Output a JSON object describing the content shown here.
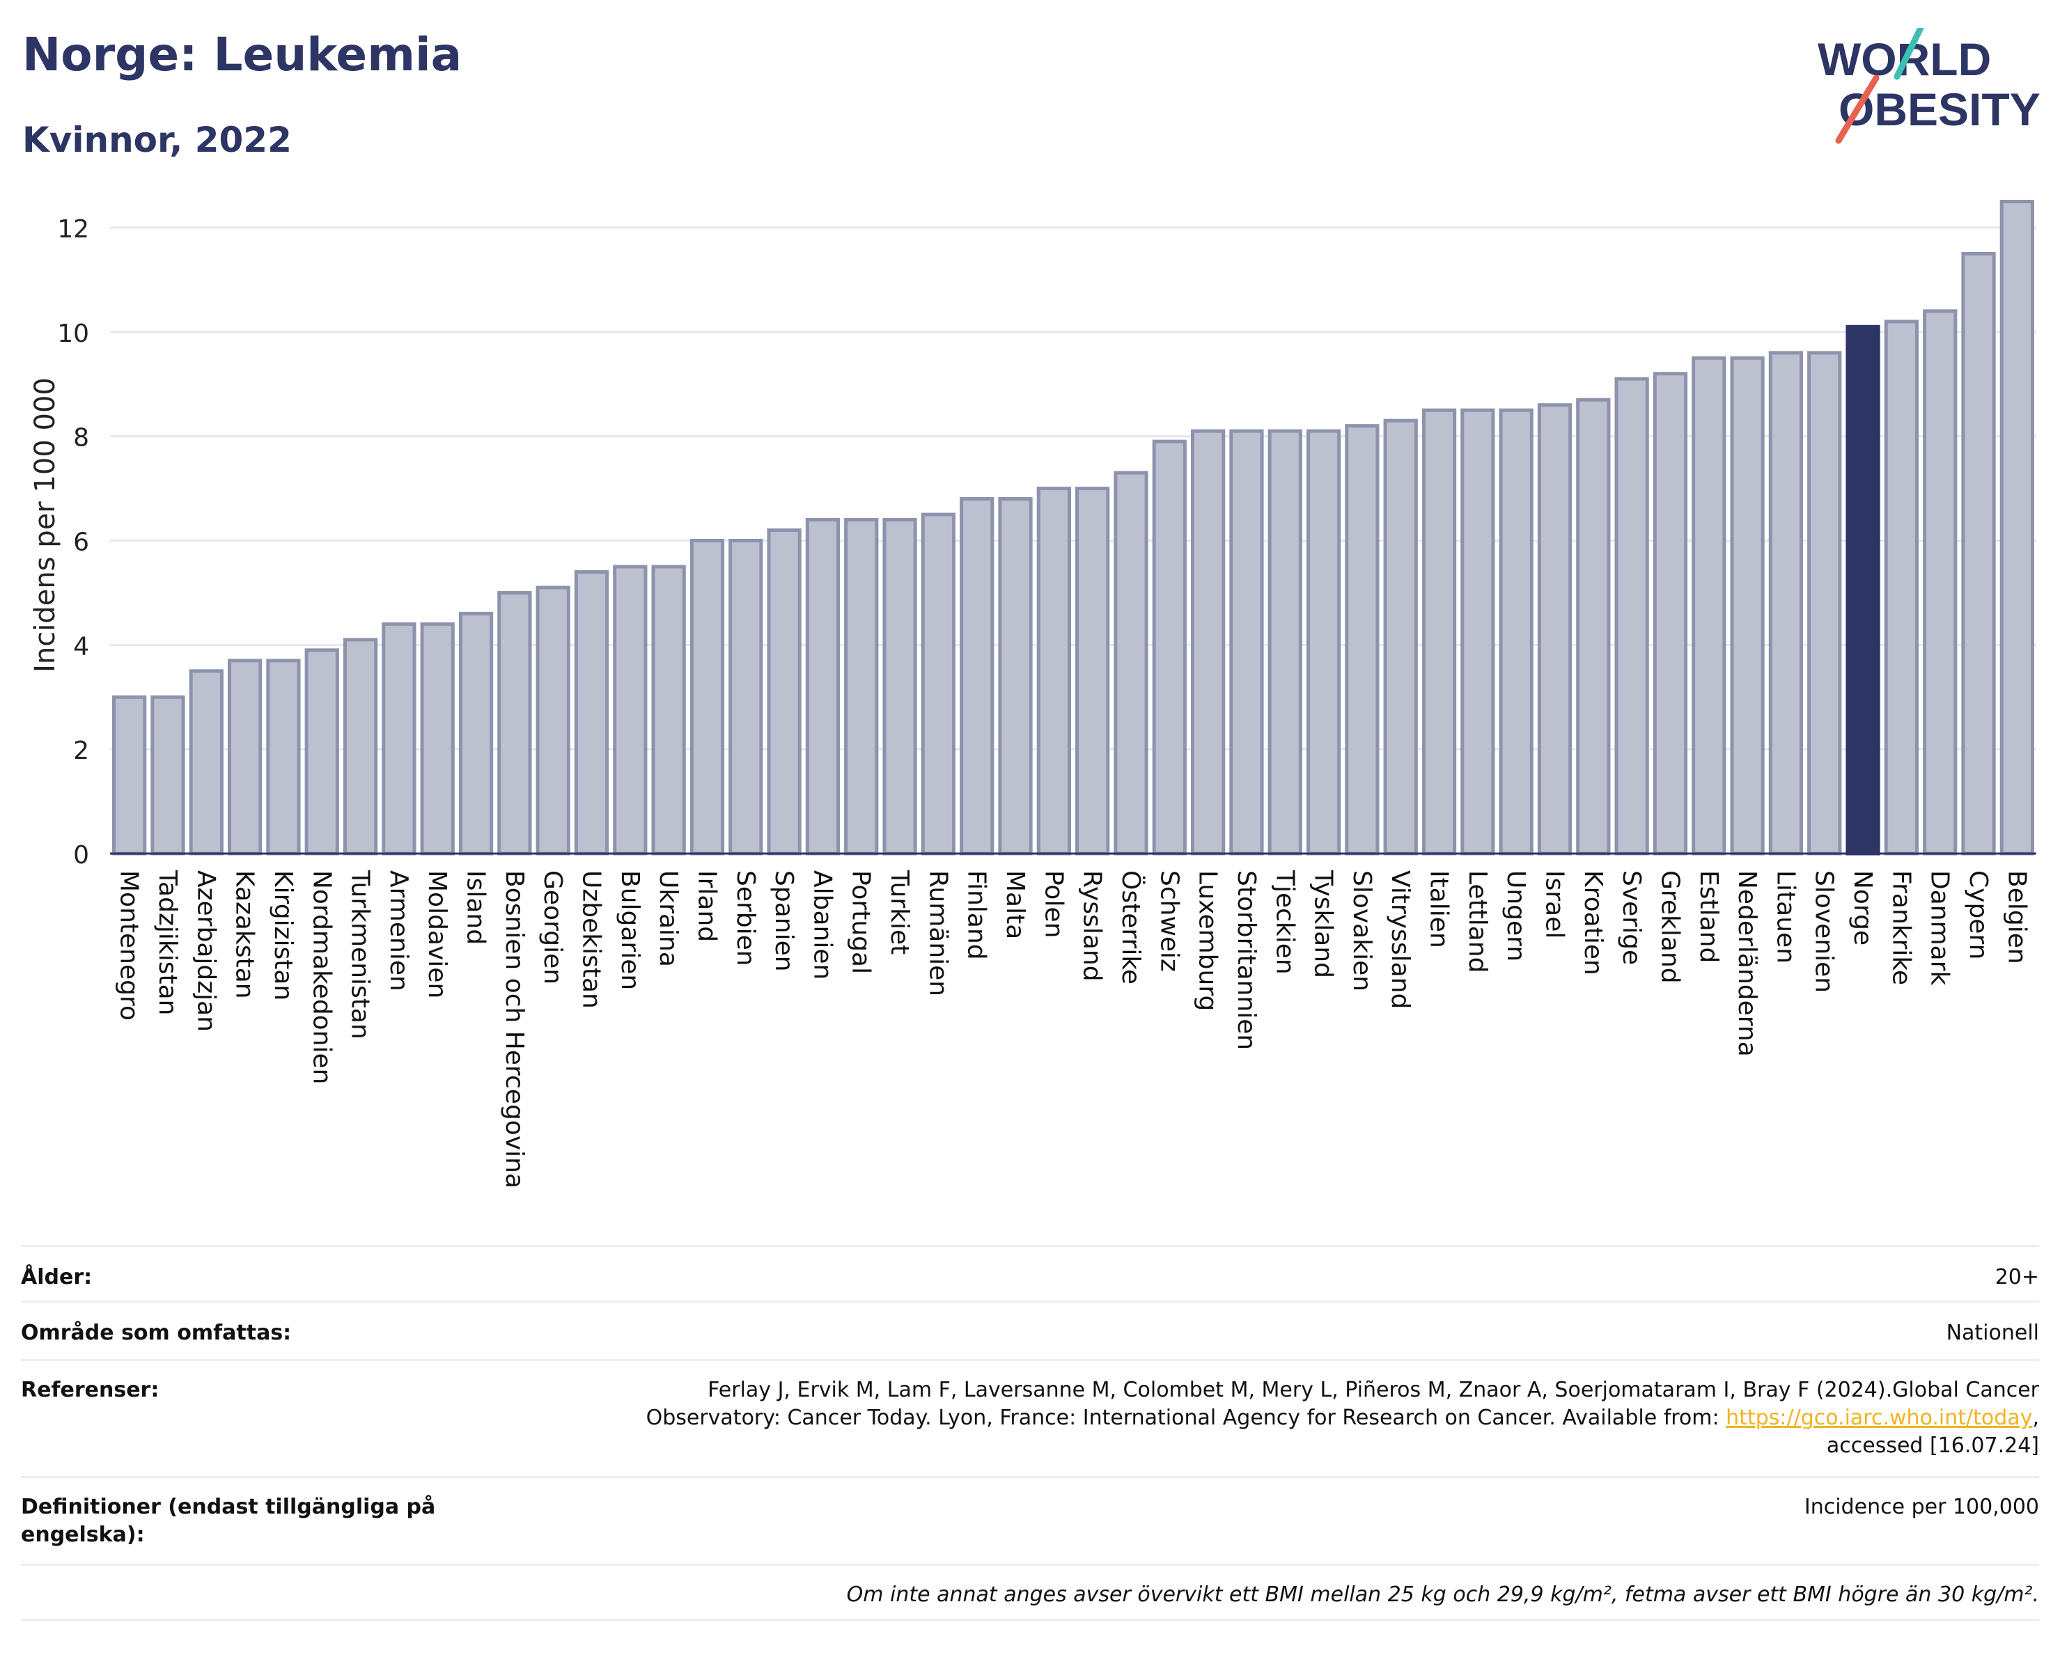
{
  "header": {
    "title": "Norge: Leukemia",
    "subtitle": "Kvinnor, 2022"
  },
  "logo": {
    "line1": "WORLD",
    "line2": "OBESITY",
    "icon": "world-obesity-logo"
  },
  "colors": {
    "bar": "#bcc0cf",
    "bar_stroke": "#8e93ad",
    "highlight": "#2c3564",
    "grid": "#e6e8ee",
    "text": "#2c3564"
  },
  "chart_data": {
    "type": "bar",
    "ylabel": "Incidens per 100 000",
    "ylim": [
      0,
      12.6
    ],
    "yticks": [
      0,
      2,
      4,
      6,
      8,
      10,
      12
    ],
    "grid": true,
    "highlight": "Norge",
    "categories": [
      "Montenegro",
      "Tadzjikistan",
      "Azerbajdzjan",
      "Kazakstan",
      "Kirgizistan",
      "Nordmakedonien",
      "Turkmenistan",
      "Armenien",
      "Moldavien",
      "Island",
      "Bosnien och Hercegovina",
      "Georgien",
      "Uzbekistan",
      "Bulgarien",
      "Ukraina",
      "Irland",
      "Serbien",
      "Spanien",
      "Albanien",
      "Portugal",
      "Turkiet",
      "Rumänien",
      "Finland",
      "Malta",
      "Polen",
      "Ryssland",
      "Österrike",
      "Schweiz",
      "Luxemburg",
      "Storbritannien",
      "Tjeckien",
      "Tyskland",
      "Slovakien",
      "Vitryssland",
      "Italien",
      "Lettland",
      "Ungern",
      "Israel",
      "Kroatien",
      "Sverige",
      "Grekland",
      "Estland",
      "Nederländerna",
      "Litauen",
      "Slovenien",
      "Norge",
      "Frankrike",
      "Danmark",
      "Cypern",
      "Belgien"
    ],
    "values": [
      3.0,
      3.0,
      3.5,
      3.7,
      3.7,
      3.9,
      4.1,
      4.4,
      4.4,
      4.6,
      5.0,
      5.1,
      5.4,
      5.5,
      5.5,
      6.0,
      6.0,
      6.2,
      6.4,
      6.4,
      6.4,
      6.5,
      6.8,
      6.8,
      7.0,
      7.0,
      7.3,
      7.9,
      8.1,
      8.1,
      8.1,
      8.1,
      8.2,
      8.3,
      8.5,
      8.5,
      8.5,
      8.6,
      8.7,
      9.1,
      9.2,
      9.5,
      9.5,
      9.6,
      9.6,
      10.1,
      10.2,
      10.4,
      11.5,
      12.5
    ]
  },
  "info": {
    "age_label": "Ålder:",
    "age_value": "20+",
    "area_label": "Område som omfattas:",
    "area_value": "Nationell",
    "refs_label": "Referenser:",
    "refs_line1": "Ferlay J, Ervik M, Lam F, Laversanne M, Colombet M, Mery L, Piñeros M, Znaor A, Soerjomataram I, Bray F (2024).Global Cancer",
    "refs_line2": "Observatory: Cancer Today. Lyon, France: International Agency for Research on Cancer. Available from: ",
    "refs_link": "https://gco.iarc.who.int/today",
    "refs_line2_end": ",",
    "refs_line3": "accessed [16.07.24]",
    "def_label": "Definitioner (endast tillgängliga på engelska):",
    "def_value": "Incidence per 100,000",
    "note": "Om inte annat anges avser övervikt ett BMI mellan 25 kg och 29,9 kg/m², fetma avser ett BMI högre än 30 kg/m²."
  }
}
